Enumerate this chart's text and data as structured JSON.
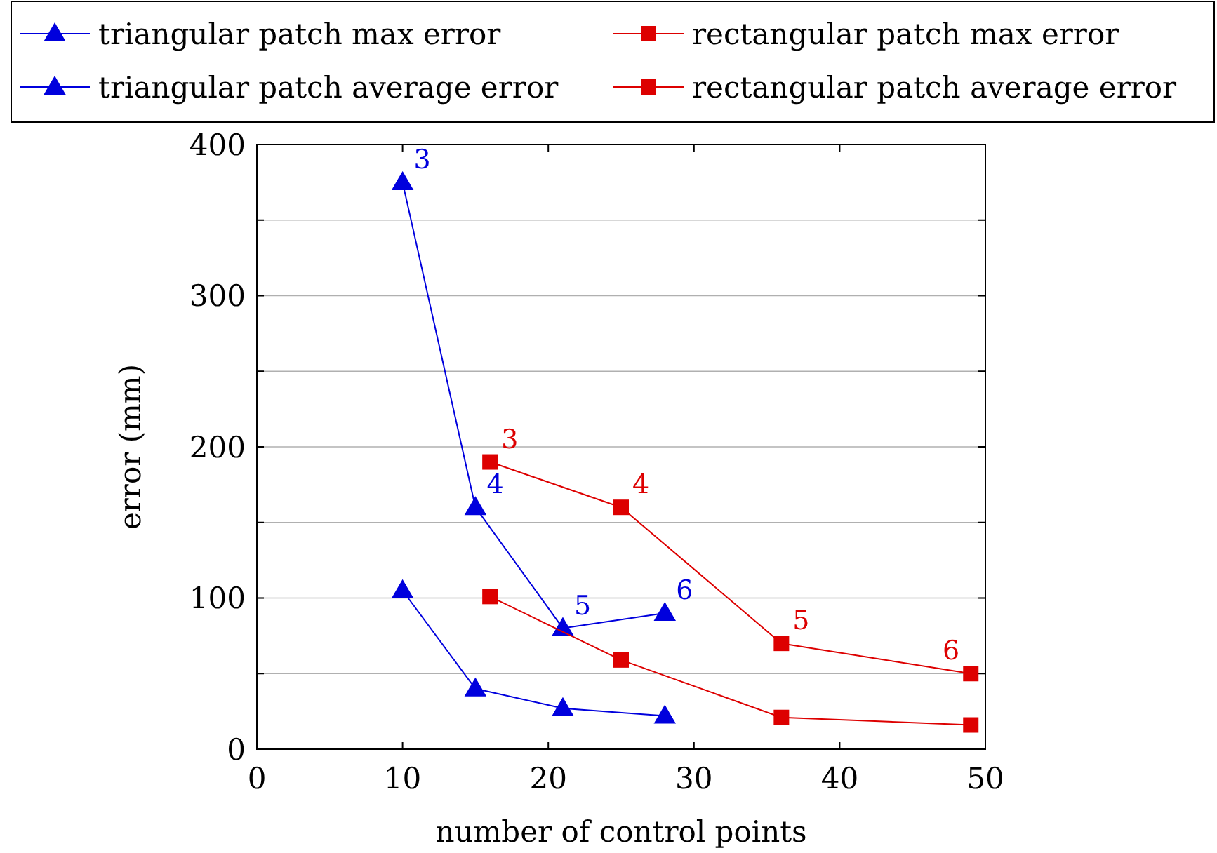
{
  "chart_data": {
    "type": "line",
    "xlabel": "number of control points",
    "ylabel": "error (mm)",
    "xlim": [
      0,
      50
    ],
    "xticks": [
      0,
      10,
      20,
      30,
      40,
      50
    ],
    "ylim": [
      0,
      400
    ],
    "yticks": [
      0,
      {
        "value": 50,
        "label": null
      },
      100,
      {
        "value": 150,
        "label": null
      },
      200,
      {
        "value": 250,
        "label": null
      },
      300,
      {
        "value": 350,
        "label": null
      },
      400
    ],
    "grid": "y",
    "legend": "top",
    "series": [
      {
        "name": "triangular patch max error",
        "color": "#0000dd",
        "marker": "triangle",
        "x": [
          10,
          15,
          21,
          28
        ],
        "values": [
          375,
          160,
          80,
          90
        ]
      },
      {
        "name": "rectangular patch max error",
        "color": "#dd0000",
        "marker": "square",
        "x": [
          16,
          25,
          36,
          49
        ],
        "values": [
          190,
          160,
          70,
          50
        ]
      },
      {
        "name": "triangular patch average error",
        "color": "#0000dd",
        "marker": "triangle",
        "x": [
          10,
          15,
          21,
          28
        ],
        "values": [
          105,
          40,
          27,
          22
        ]
      },
      {
        "name": "rectangular patch average error",
        "color": "#dd0000",
        "marker": "square",
        "x": [
          16,
          25,
          36,
          49
        ],
        "values": [
          101,
          59,
          21,
          16
        ]
      }
    ],
    "annotations": [
      {
        "text": "3",
        "x": 10,
        "y": 375
      },
      {
        "text": "4",
        "x": 15,
        "y": 160
      },
      {
        "text": "5",
        "x": 21,
        "y": 80
      },
      {
        "text": "6",
        "x": 28,
        "y": 90
      },
      {
        "text": "3",
        "x": 16,
        "y": 190
      },
      {
        "text": "4",
        "x": 25,
        "y": 160
      },
      {
        "text": "5",
        "x": 36,
        "y": 70
      },
      {
        "text": "6",
        "x": 49,
        "y": 50
      }
    ]
  }
}
